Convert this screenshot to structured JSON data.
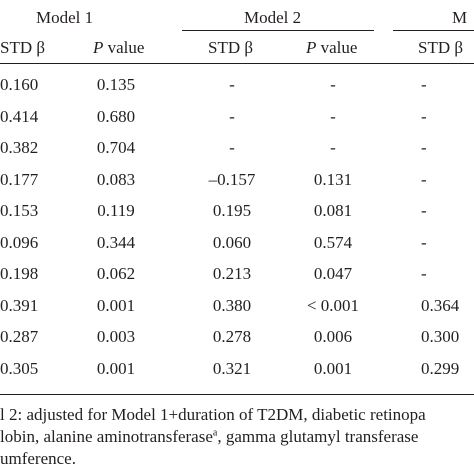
{
  "header": {
    "groups": [
      "Model 1",
      "Model 2",
      "M"
    ],
    "subheaders": [
      {
        "std": "STD β",
        "p_label": "P",
        "p_suffix": " value"
      },
      {
        "std": "STD β",
        "p_label": "P",
        "p_suffix": " value"
      },
      {
        "std": "STD β"
      }
    ]
  },
  "rows": [
    [
      "0.160",
      "0.135",
      "-",
      "-",
      "-"
    ],
    [
      "0.414",
      "0.680",
      "-",
      "-",
      "-"
    ],
    [
      "0.382",
      "0.704",
      "-",
      "-",
      "-"
    ],
    [
      "0.177",
      "0.083",
      "–0.157",
      "0.131",
      "-"
    ],
    [
      "0.153",
      "0.119",
      "0.195",
      "0.081",
      "-"
    ],
    [
      "0.096",
      "0.344",
      "0.060",
      "0.574",
      "-"
    ],
    [
      "0.198",
      "0.062",
      "0.213",
      "0.047",
      "-"
    ],
    [
      "0.391",
      "0.001",
      "0.380",
      "< 0.001",
      "0.364"
    ],
    [
      "0.287",
      "0.003",
      "0.278",
      "0.006",
      "0.300"
    ],
    [
      "0.305",
      "0.001",
      "0.321",
      "0.001",
      "0.299"
    ]
  ],
  "footnotes": {
    "line1": "l 2: adjusted for Model 1+duration of T2DM, diabetic retinopa",
    "line2_a": "lobin, alanine aminotransferase",
    "line2_sup": "a",
    "line2_b": ", gamma glutamyl transferase",
    "line3": "umference."
  }
}
